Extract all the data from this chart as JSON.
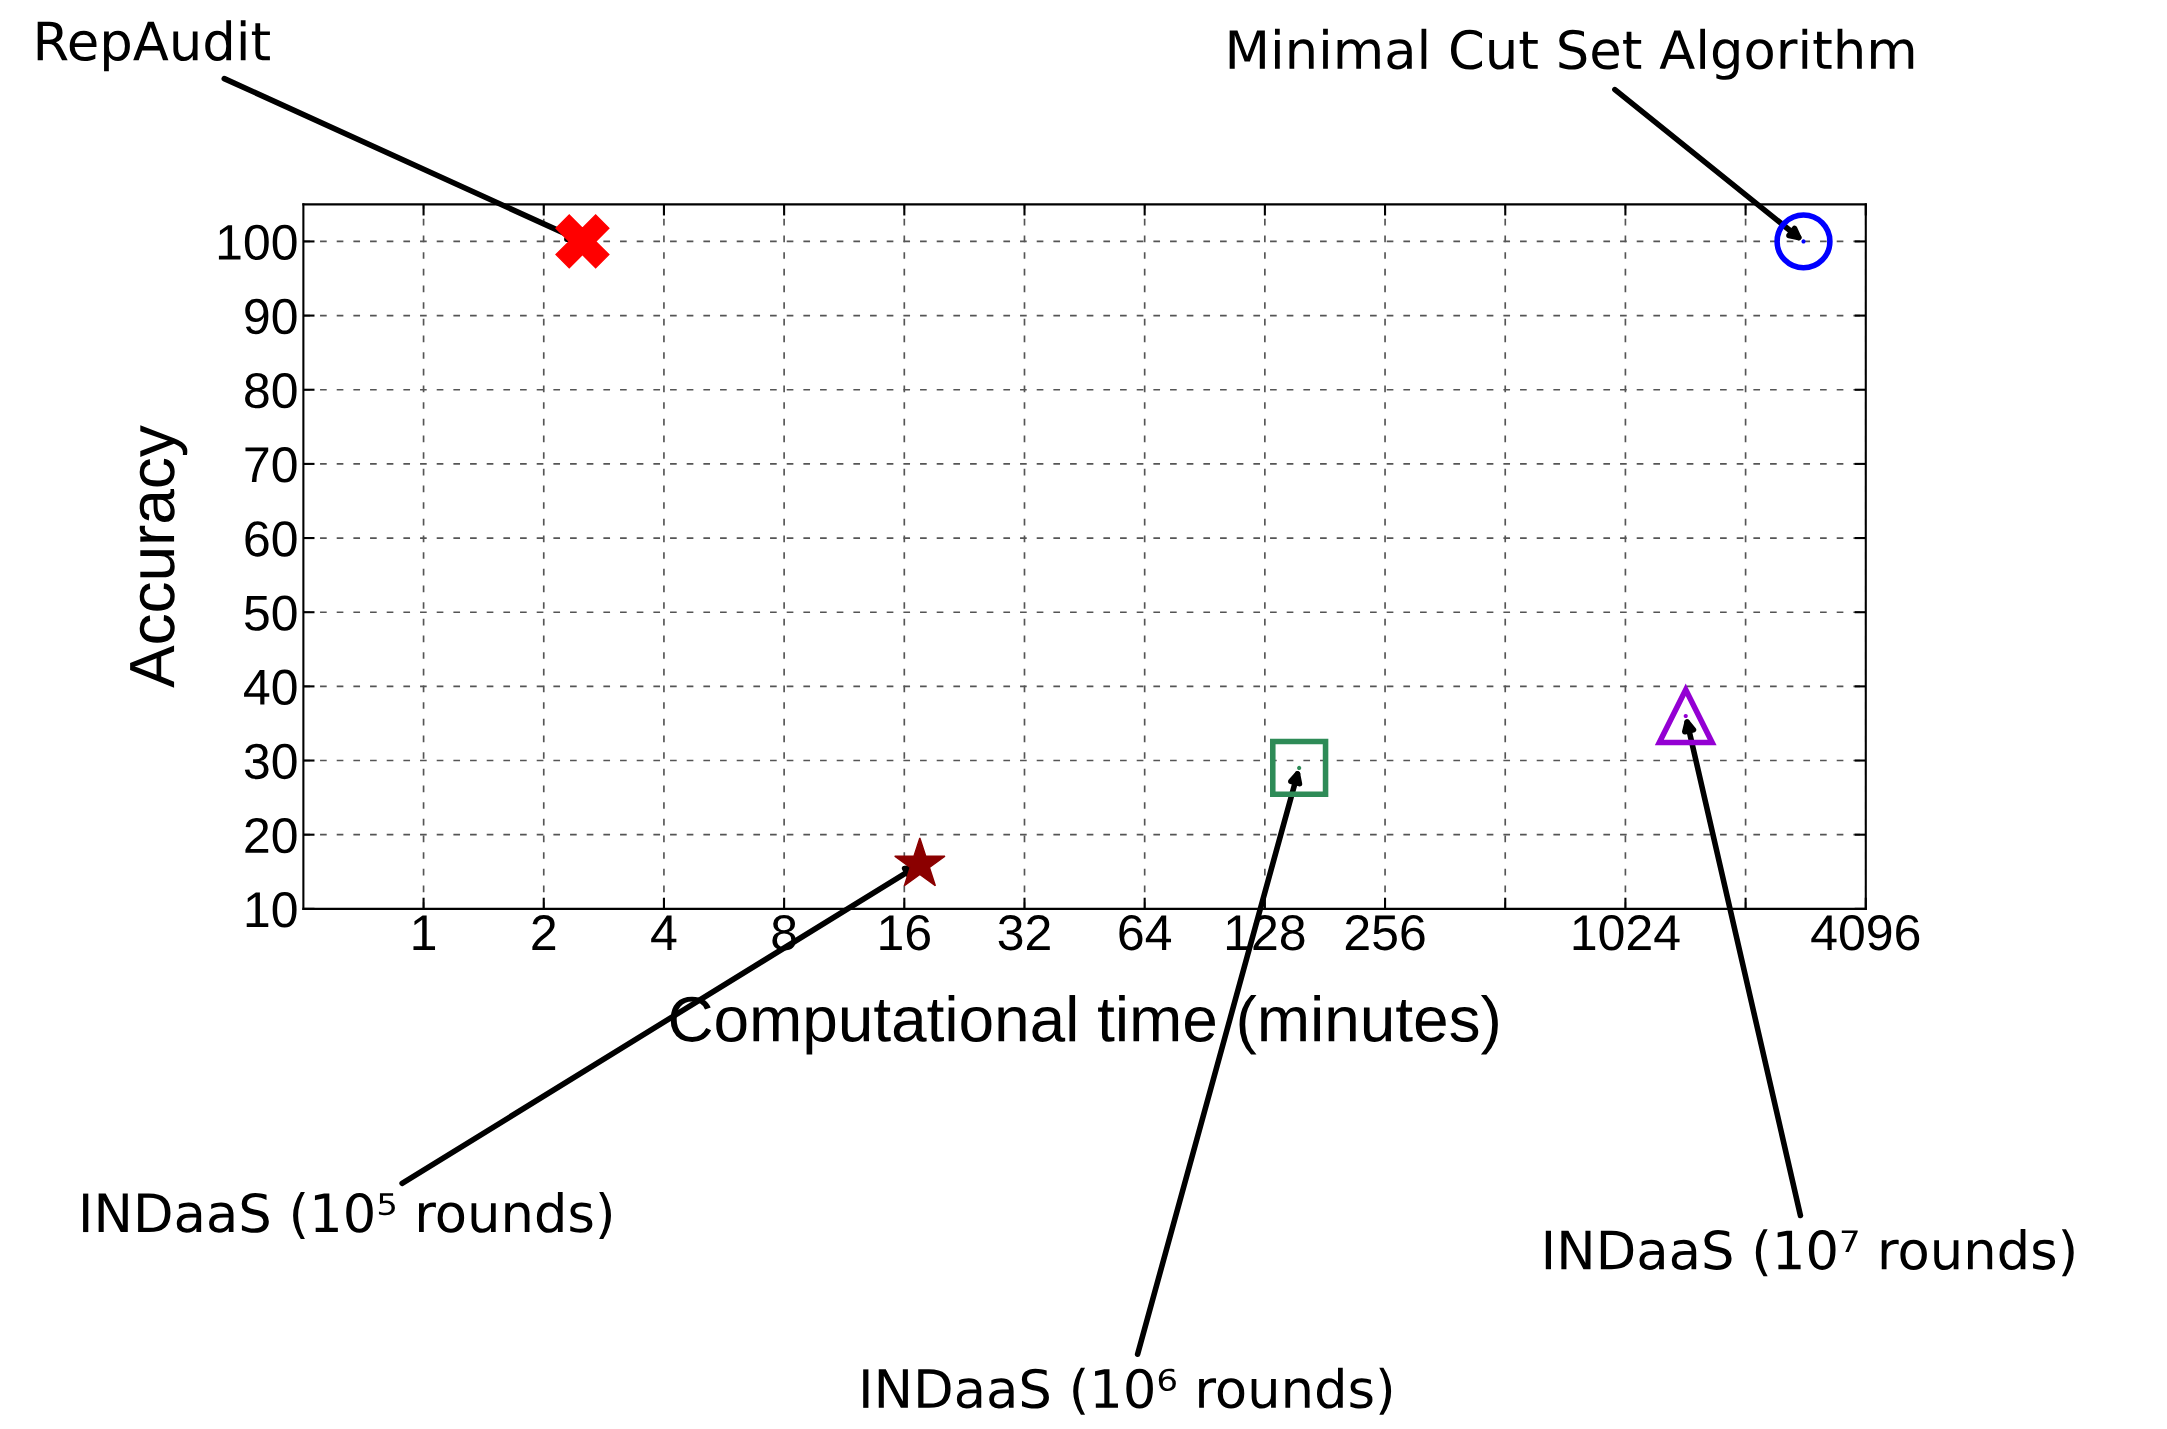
{
  "chart_data": {
    "type": "scatter",
    "xlabel": "Computational time (minutes)",
    "ylabel": "Accuracy",
    "log": "x",
    "grid": true,
    "xlim": [
      0.5,
      4096
    ],
    "xticks": [
      1,
      2,
      4,
      8,
      16,
      32,
      64,
      128,
      256,
      {
        "value": 512,
        "label": null
      },
      1024,
      {
        "value": 2048,
        "label": null
      },
      4096
    ],
    "ylim": [
      10,
      105
    ],
    "yticks": [
      10,
      20,
      30,
      40,
      50,
      60,
      70,
      80,
      90,
      100
    ],
    "series": [
      {
        "color": "#ff0000",
        "marker": "cross",
        "x": [
          2.5
        ],
        "values": [
          100
        ]
      },
      {
        "color": "#8b0000",
        "marker": "star",
        "x": [
          17.5
        ],
        "values": [
          16
        ]
      },
      {
        "color": "#2e8b57",
        "marker": "square",
        "x": [
          156
        ],
        "values": [
          29
        ]
      },
      {
        "color": "#9400d3",
        "marker": "triangle",
        "x": [
          1450
        ],
        "values": [
          36
        ]
      },
      {
        "color": "#0000ff",
        "marker": "circle",
        "x": [
          2860
        ],
        "values": [
          100
        ]
      }
    ],
    "annotations": [
      {
        "text": "RepAudit",
        "x": 2.5,
        "y": 100
      },
      {
        "text": "Minimal Cut Set Algorithm",
        "x": 2860,
        "y": 100
      },
      {
        "text": "INDaaS (10⁵ rounds)",
        "x": 17.5,
        "y": 16
      },
      {
        "text": "INDaaS (10⁶ rounds)",
        "x": 156,
        "y": 29
      },
      {
        "text": "INDaaS (10⁷ rounds)",
        "x": 1450,
        "y": 36
      }
    ]
  }
}
